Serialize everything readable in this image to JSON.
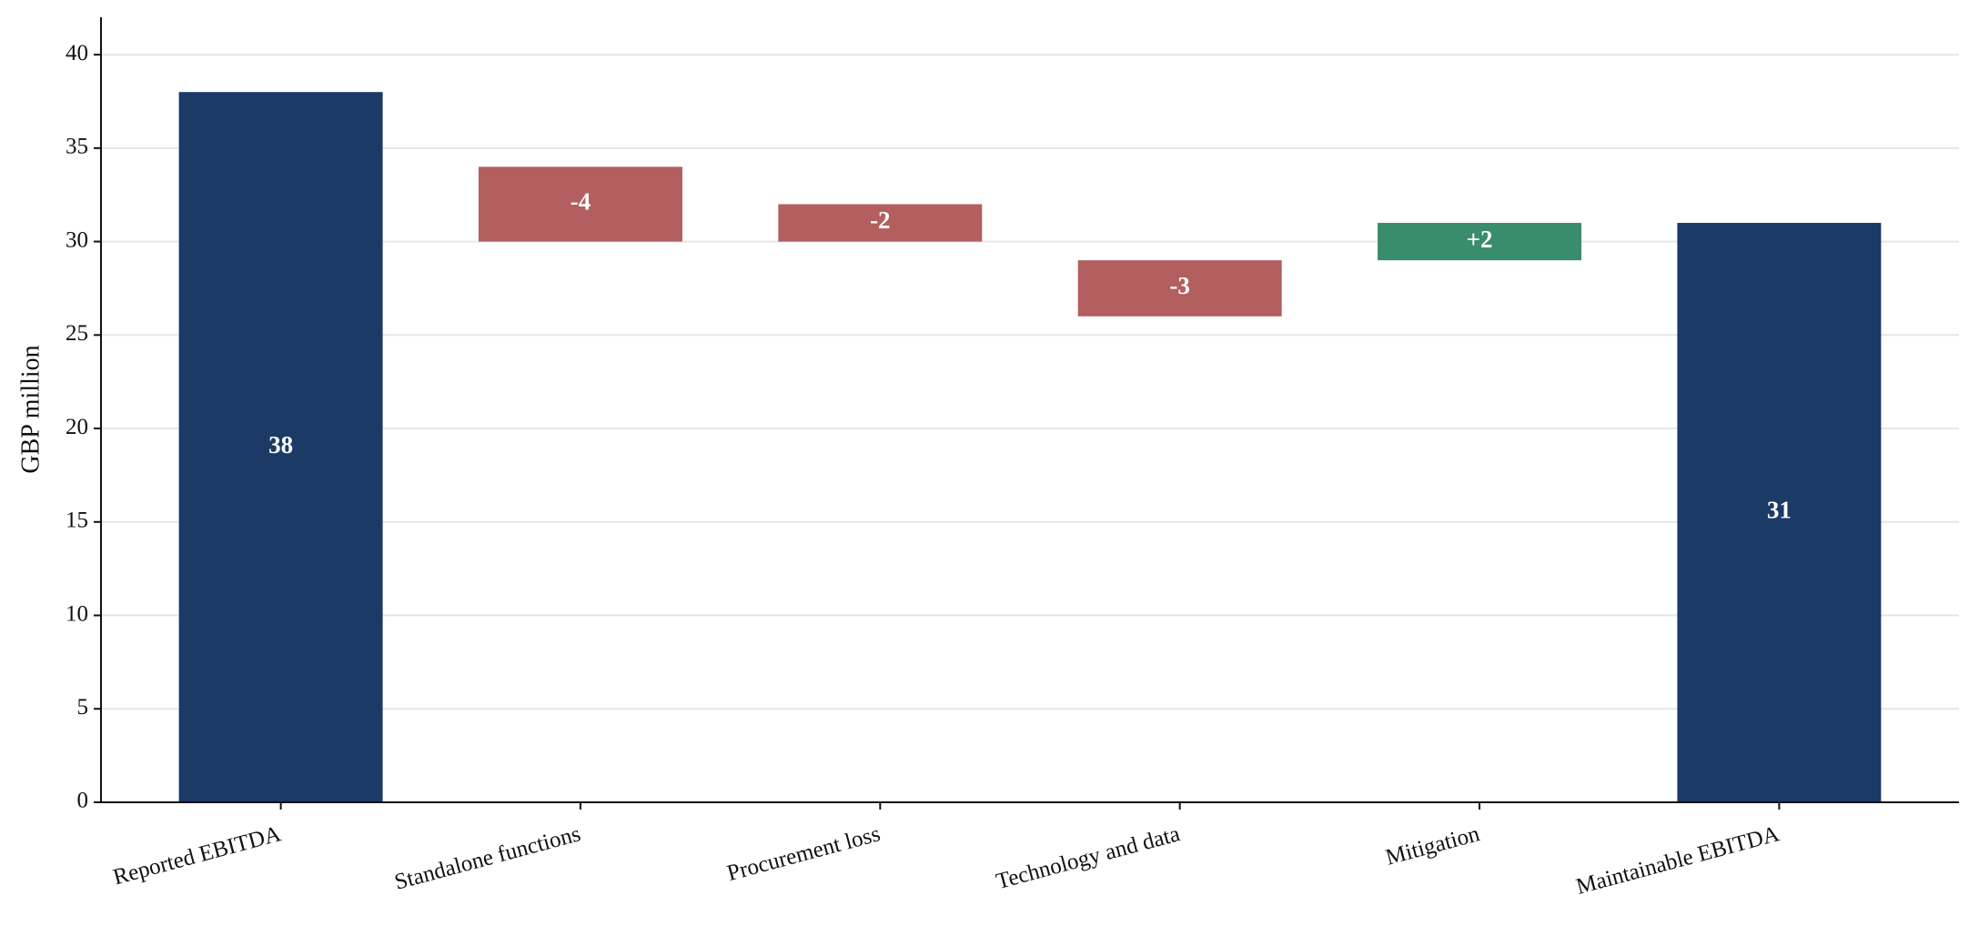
{
  "chart_data": {
    "type": "waterfall",
    "y_label": "GBP million",
    "categories": [
      "Reported EBITDA",
      "Standalone functions",
      "Procurement loss",
      "Technology and data",
      "Mitigation",
      "Maintainable EBITDA"
    ],
    "values": [
      38,
      -4,
      -2,
      -3,
      2,
      31
    ],
    "value_labels": [
      "38",
      "-4",
      "-2",
      "-3",
      "+2",
      "31"
    ],
    "total_indices": [
      0,
      5
    ],
    "colors": [
      "#1b3a66",
      "#b35f5f",
      "#b35f5f",
      "#b35f5f",
      "#3a8c6e",
      "#1b3a66"
    ],
    "ylim": [
      0,
      42
    ],
    "yticks": [
      0,
      5,
      10,
      15,
      20,
      25,
      30,
      35,
      40
    ],
    "grid": true
  }
}
